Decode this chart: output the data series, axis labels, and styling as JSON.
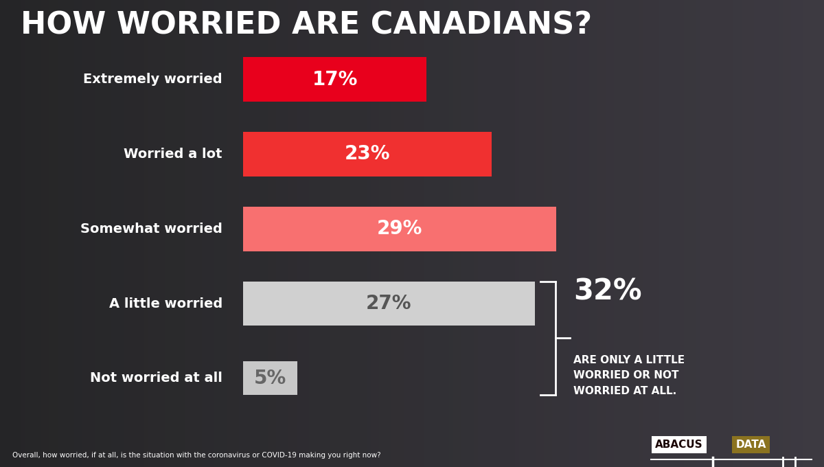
{
  "title": "HOW WORRIED ARE CANADIANS?",
  "categories": [
    "Extremely worried",
    "Worried a lot",
    "Somewhat worried",
    "A little worried",
    "Not worried at all"
  ],
  "values": [
    17,
    23,
    29,
    27,
    5
  ],
  "bar_colors": [
    "#e8001c",
    "#f03030",
    "#f87070",
    "#d0d0d0",
    "#c8c8c8"
  ],
  "pct_colors": [
    "#ffffff",
    "#ffffff",
    "#ffffff",
    "#555555",
    "#666666"
  ],
  "annotation_32": "32%",
  "annotation_text": "ARE ONLY A LITTLE\nWORRIED OR NOT\nWORRIED AT ALL.",
  "footnote": "Overall, how worried, if at all, is the situation with the coronavirus or COVID-19 making you right now?",
  "bg_color": "#2a2a2a",
  "title_color": "#ffffff",
  "abacus_text": "ABACUS",
  "data_text": "DATA",
  "data_bg_color": "#8b7320"
}
